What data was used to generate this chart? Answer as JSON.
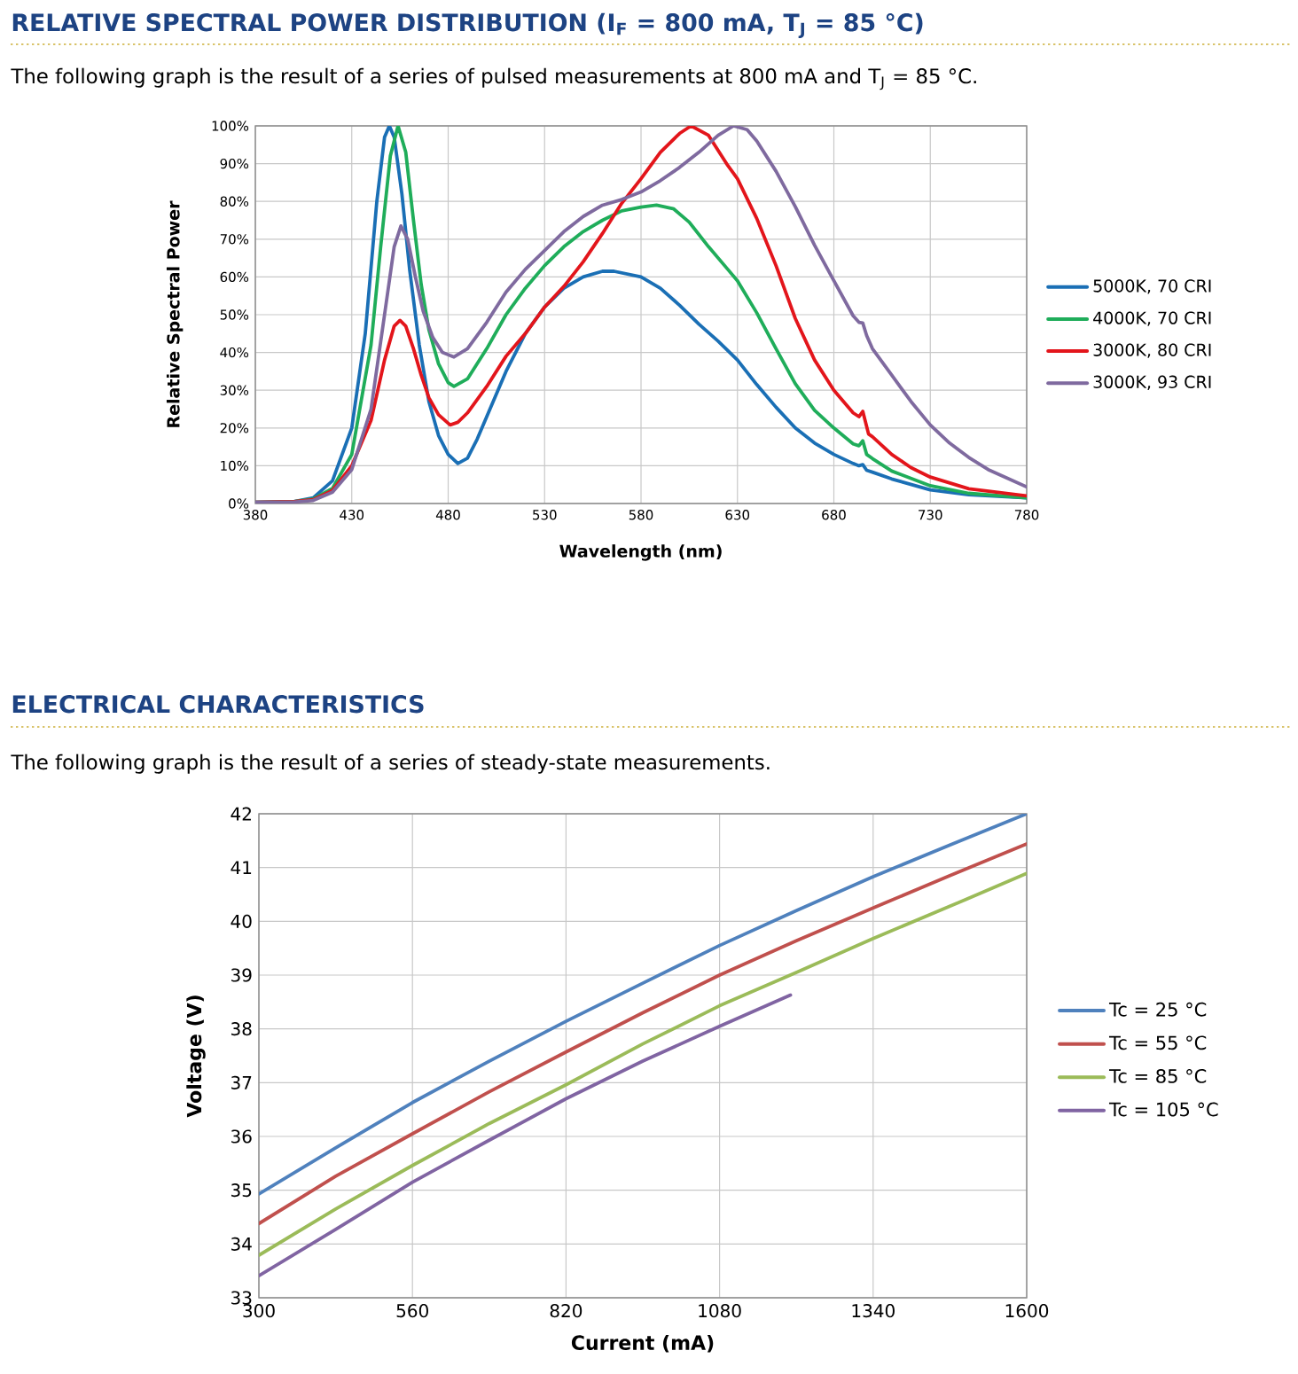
{
  "chart_data": [
    {
      "type": "line",
      "title": "RELATIVE SPECTRAL POWER DISTRIBUTION (I$_{F}$ = 800 mA, T$_{J}$ = 85 °C)",
      "subtitle": "The following graph is the result of a series of pulsed measurements at 800 mA and T$_{J}$ = 85 °C.",
      "xlabel": "Wavelength (nm)",
      "ylabel": "Relative Spectral Power",
      "xlim": [
        380,
        780
      ],
      "xticks": [
        380,
        430,
        480,
        530,
        580,
        630,
        680,
        730,
        780
      ],
      "ylim": [
        0,
        100
      ],
      "yticks": [
        {
          "value": 0,
          "label": "0%"
        },
        {
          "value": 10,
          "label": "10%"
        },
        {
          "value": 20,
          "label": "20%"
        },
        {
          "value": 30,
          "label": "30%"
        },
        {
          "value": 40,
          "label": "40%"
        },
        {
          "value": 50,
          "label": "50%"
        },
        {
          "value": 60,
          "label": "60%"
        },
        {
          "value": 70,
          "label": "70%"
        },
        {
          "value": 80,
          "label": "80%"
        },
        {
          "value": 90,
          "label": "90%"
        },
        {
          "value": 100,
          "label": "100%"
        }
      ],
      "grid": true,
      "legend": "right",
      "series": [
        {
          "name": "5000K, 70 CRI",
          "color": "#1a6fb5",
          "x": [
            380,
            400,
            410,
            420,
            430,
            437,
            443,
            447,
            449.5,
            452,
            456,
            460,
            465,
            470,
            475,
            480,
            485,
            490,
            495,
            500,
            510,
            520,
            530,
            540,
            550,
            560,
            566,
            580,
            590,
            600,
            610,
            620,
            630,
            640,
            650,
            660,
            670,
            680,
            690,
            693,
            695,
            697,
            700,
            710,
            730,
            750,
            780
          ],
          "values": [
            0.3,
            0.5,
            1.5,
            6,
            20,
            45,
            80,
            97,
            100,
            97,
            82,
            62,
            42,
            27,
            18,
            13,
            10.6,
            12,
            17,
            23,
            35,
            45,
            52,
            57,
            60,
            61.5,
            61.5,
            60,
            57,
            52.5,
            47.5,
            43,
            38,
            31.5,
            25.5,
            20,
            16,
            13,
            10.6,
            10,
            10.3,
            8.8,
            8.3,
            6.5,
            3.6,
            2.3,
            1.5
          ]
        },
        {
          "name": "4000K, 70 CRI",
          "color": "#1fad5a",
          "x": [
            380,
            400,
            410,
            420,
            430,
            440,
            445,
            450,
            454,
            458,
            462,
            466,
            470,
            475,
            480,
            483,
            490,
            500,
            510,
            520,
            530,
            540,
            550,
            560,
            570,
            580,
            588,
            597,
            605,
            615,
            625,
            630,
            640,
            650,
            660,
            670,
            680,
            690,
            693,
            695,
            697,
            700,
            710,
            730,
            750,
            780
          ],
          "values": [
            0.3,
            0.5,
            1.2,
            4,
            13,
            42,
            68,
            92,
            100,
            93,
            75,
            58,
            46,
            37,
            32,
            31,
            33,
            41,
            50,
            57,
            63,
            68,
            72,
            75,
            77.5,
            78.5,
            79,
            78,
            74.5,
            68,
            62,
            59,
            50.5,
            41,
            31.7,
            24.7,
            20,
            15.8,
            15.3,
            16.6,
            13,
            11.9,
            8.6,
            4.7,
            2.7,
            1.5
          ]
        },
        {
          "name": "3000K, 80 CRI",
          "color": "#e3151b",
          "x": [
            380,
            400,
            410,
            420,
            430,
            440,
            447,
            452,
            455,
            458,
            462,
            466,
            470,
            475,
            481,
            485,
            490,
            500,
            510,
            520,
            530,
            540,
            550,
            560,
            570,
            580,
            590,
            600,
            606,
            615,
            625,
            630,
            640,
            650,
            660,
            670,
            680,
            690,
            693,
            695,
            698,
            700,
            710,
            720,
            730,
            750,
            780
          ],
          "values": [
            0.3,
            0.5,
            1,
            3.5,
            10,
            22,
            38,
            47,
            48.5,
            47,
            41,
            34,
            28,
            23.5,
            20.8,
            21.5,
            24,
            31,
            39,
            45,
            52,
            57.5,
            64,
            71.5,
            79.5,
            86,
            93,
            98,
            100,
            97.5,
            89.5,
            86,
            75.5,
            63,
            49,
            38,
            30,
            24,
            23,
            24.4,
            18.4,
            17.7,
            13,
            9.5,
            7,
            3.9,
            2
          ]
        },
        {
          "name": "3000K, 93 CRI",
          "color": "#7f6a9f",
          "x": [
            380,
            400,
            410,
            420,
            430,
            440,
            447,
            452,
            455.5,
            459,
            463,
            467,
            472,
            477,
            483,
            490,
            500,
            510,
            520,
            530,
            540,
            550,
            560,
            570,
            580,
            590,
            600,
            610,
            620,
            628,
            635,
            640,
            650,
            660,
            670,
            680,
            690,
            693,
            695,
            697,
            700,
            710,
            720,
            730,
            740,
            750,
            760,
            770,
            780
          ],
          "values": [
            0.3,
            0.4,
            0.8,
            3,
            9,
            25,
            50,
            68,
            73.5,
            70,
            60,
            51,
            44,
            40,
            38.8,
            41,
            48,
            56,
            62,
            67,
            72,
            76,
            79,
            80.5,
            82.5,
            85.5,
            89,
            93,
            97.5,
            100,
            99,
            96,
            88,
            78.6,
            68.4,
            59,
            49.7,
            48,
            47.8,
            44.5,
            41,
            34,
            27,
            20.8,
            16,
            12.2,
            9,
            6.7,
            4.4
          ]
        }
      ]
    },
    {
      "type": "line",
      "title": "ELECTRICAL CHARACTERISTICS",
      "subtitle": "The following graph is the result of a series of steady-state measurements.",
      "xlabel": "Current (mA)",
      "ylabel": "Voltage (V)",
      "xlim": [
        300,
        1600
      ],
      "xticks": [
        300,
        560,
        820,
        1080,
        1340,
        1600
      ],
      "ylim": [
        33,
        42
      ],
      "yticks": [
        33,
        34,
        35,
        36,
        37,
        38,
        39,
        40,
        41,
        42
      ],
      "grid": true,
      "legend": "right",
      "series": [
        {
          "name": "Tc = 25 °C",
          "color": "#4f81bd",
          "x": [
            300,
            430,
            560,
            690,
            820,
            950,
            1080,
            1210,
            1340,
            1470,
            1600
          ],
          "values": [
            34.93,
            35.79,
            36.63,
            37.4,
            38.14,
            38.85,
            39.55,
            40.2,
            40.83,
            41.42,
            42.0
          ]
        },
        {
          "name": "Tc = 55 °C",
          "color": "#c0504d",
          "x": [
            300,
            430,
            560,
            690,
            820,
            950,
            1080,
            1210,
            1340,
            1470,
            1600
          ],
          "values": [
            34.38,
            35.26,
            36.05,
            36.83,
            37.57,
            38.3,
            39.0,
            39.64,
            40.25,
            40.85,
            41.44
          ]
        },
        {
          "name": "Tc = 85 °C",
          "color": "#9bbb59",
          "x": [
            300,
            430,
            560,
            690,
            820,
            950,
            1080,
            1210,
            1340,
            1470,
            1600
          ],
          "values": [
            33.79,
            34.65,
            35.46,
            36.24,
            36.96,
            37.72,
            38.43,
            39.05,
            39.68,
            40.28,
            40.89
          ]
        },
        {
          "name": "Tc = 105 °C",
          "color": "#8064a2",
          "x": [
            300,
            430,
            560,
            690,
            820,
            950,
            1080,
            1200
          ],
          "values": [
            33.41,
            34.27,
            35.15,
            35.93,
            36.7,
            37.4,
            38.05,
            38.63
          ]
        }
      ]
    }
  ]
}
